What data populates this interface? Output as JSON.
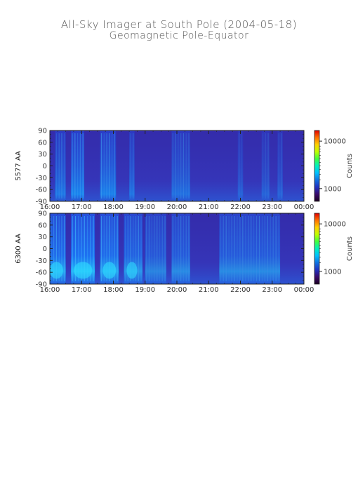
{
  "title": "All-Sky Imager at South Pole (2004-05-18)",
  "subtitle": "Geomagnetic Pole-Equator",
  "colorbar": {
    "label": "Counts",
    "ticks": [
      "10000",
      "1000"
    ],
    "scale": "log",
    "colors": [
      "#1a0020",
      "#3a0a6a",
      "#2030c0",
      "#1070e0",
      "#00c0ff",
      "#00f0c0",
      "#40ff40",
      "#c0ff00",
      "#ffd000",
      "#ff7000",
      "#e00000"
    ]
  },
  "chart_data": [
    {
      "type": "heatmap",
      "ylabel": "5577 AA",
      "x_ticks": [
        "16:00",
        "17:00",
        "18:00",
        "19:00",
        "20:00",
        "21:00",
        "22:00",
        "23:00",
        "00:00"
      ],
      "y_ticks": [
        "90",
        "60",
        "30",
        "0",
        "-30",
        "-60",
        "-90"
      ],
      "y_range": [
        -90,
        90
      ],
      "x_range": [
        "16:00",
        "00:00"
      ],
      "background_color": "#3a2aa0",
      "bright_bands": [
        {
          "start": "16:10",
          "end": "16:30",
          "intensity": 0.6
        },
        {
          "start": "16:40",
          "end": "17:05",
          "intensity": 0.75
        },
        {
          "start": "17:35",
          "end": "18:05",
          "intensity": 0.7
        },
        {
          "start": "18:30",
          "end": "18:40",
          "intensity": 0.55
        },
        {
          "start": "19:50",
          "end": "20:25",
          "intensity": 0.5
        },
        {
          "start": "21:55",
          "end": "22:05",
          "intensity": 0.35
        },
        {
          "start": "22:40",
          "end": "22:55",
          "intensity": 0.35
        },
        {
          "start": "23:10",
          "end": "23:20",
          "intensity": 0.35
        }
      ]
    },
    {
      "type": "heatmap",
      "ylabel": "6300 AA",
      "x_ticks": [
        "16:00",
        "17:00",
        "18:00",
        "19:00",
        "20:00",
        "21:00",
        "22:00",
        "23:00",
        "00:00"
      ],
      "y_ticks": [
        "90",
        "60",
        "30",
        "0",
        "-30",
        "-60",
        "-90"
      ],
      "y_range": [
        -90,
        90
      ],
      "x_range": [
        "16:00",
        "00:00"
      ],
      "background_color": "#3a2aa0",
      "bright_bands": [
        {
          "start": "16:00",
          "end": "16:30",
          "intensity": 0.85
        },
        {
          "start": "16:40",
          "end": "17:25",
          "intensity": 0.95
        },
        {
          "start": "17:35",
          "end": "18:10",
          "intensity": 0.85
        },
        {
          "start": "18:20",
          "end": "18:55",
          "intensity": 0.7
        },
        {
          "start": "19:00",
          "end": "19:40",
          "intensity": 0.55
        },
        {
          "start": "19:50",
          "end": "20:25",
          "intensity": 0.6
        },
        {
          "start": "21:20",
          "end": "23:15",
          "intensity": 0.6
        }
      ]
    }
  ]
}
